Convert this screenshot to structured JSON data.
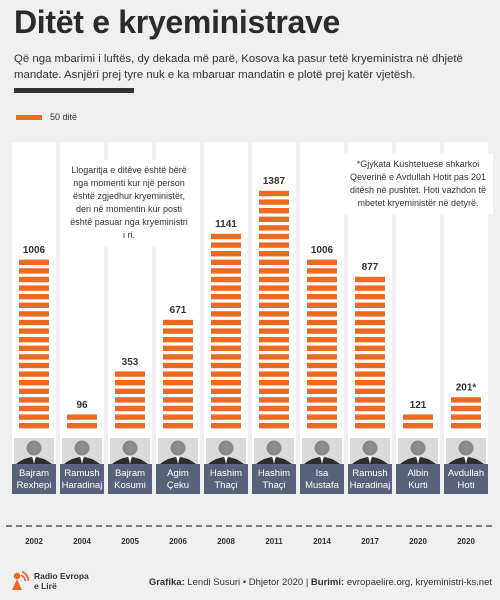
{
  "title": "Ditët e kryeministrave",
  "subtitle": "Që nga mbarimi i luftës, dy dekada më parë, Kosova ka pasur tetë kryeministra në dhjetë mandate. Asnjëri prej tyre nuk e ka mbaruar mandatin e plotë prej katër vjetësh.",
  "legend_label": "50 ditë",
  "notes": {
    "left": "Llogaritja e ditëve është bërë nga momenti kur një person është zgjedhur kryeministër, deri në momentin kur posti është pasuar nga kryeministri i ri.",
    "right": "*Gjykata Kushtetuese shkarkoi Qeverinë e Avdullah Hotit pas 201 ditësh në pushtet. Hoti vazhdon të mbetet kryeministër në detyrë."
  },
  "footer": {
    "logo_line1": "Radio Evropa",
    "logo_line2": "e Lirë",
    "credits_label1": "Grafika:",
    "credits_value1": "Lendi Susuri • Dhjetor 2020 |",
    "credits_label2": "Burimi:",
    "credits_value2": "evropaelire.org, kryeministri-ks.net"
  },
  "colors": {
    "accent": "#ee6a23",
    "name_bar": "#58627a",
    "background": "#efefef",
    "column": "#ffffff"
  },
  "chart_data": {
    "type": "bar",
    "unit_per_block": 50,
    "series": [
      {
        "first": "Bajram",
        "last": "Rexhepi",
        "year": "2002",
        "value": 1006,
        "label": "1006"
      },
      {
        "first": "Ramush",
        "last": "Haradinaj",
        "year": "2004",
        "value": 96,
        "label": "96"
      },
      {
        "first": "Bajram",
        "last": "Kosumi",
        "year": "2005",
        "value": 353,
        "label": "353"
      },
      {
        "first": "Agim",
        "last": "Çeku",
        "year": "2006",
        "value": 671,
        "label": "671"
      },
      {
        "first": "Hashim",
        "last": "Thaçi",
        "year": "2008",
        "value": 1141,
        "label": "1141"
      },
      {
        "first": "Hashim",
        "last": "Thaçi",
        "year": "2011",
        "value": 1387,
        "label": "1387"
      },
      {
        "first": "Isa",
        "last": "Mustafa",
        "year": "2014",
        "value": 1006,
        "label": "1006"
      },
      {
        "first": "Ramush",
        "last": "Haradinaj",
        "year": "2017",
        "value": 877,
        "label": "877"
      },
      {
        "first": "Albin",
        "last": "Kurti",
        "year": "2020",
        "value": 121,
        "label": "121"
      },
      {
        "first": "Avdullah",
        "last": "Hoti",
        "year": "2020",
        "value": 201,
        "label": "201*"
      }
    ]
  }
}
